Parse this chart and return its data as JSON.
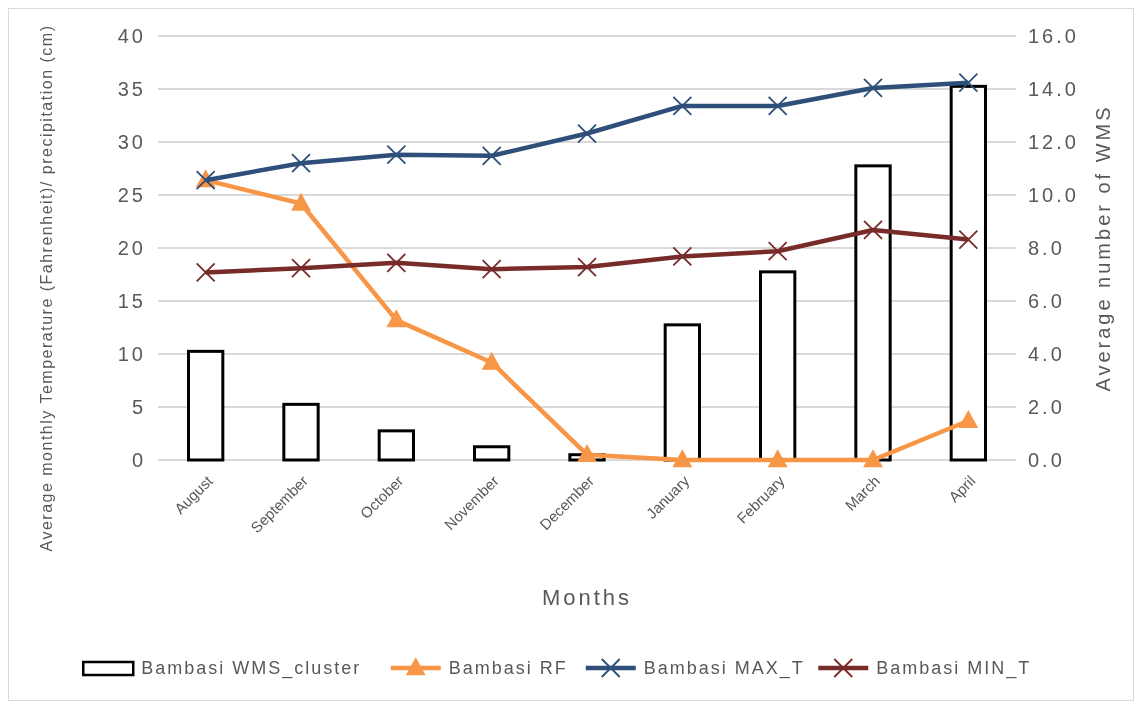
{
  "chart_data": {
    "type": "bar",
    "xlabel": "Months",
    "ylabel": "Average monthly Temperature (Fahrenheit)/ precipitation (cm)",
    "y2label": "Average number of WMS",
    "categories": [
      "August",
      "September",
      "October",
      "November",
      "December",
      "January",
      "February",
      "March",
      "April"
    ],
    "series": [
      {
        "name": "Bambasi WMS_cluster",
        "axis": "y2",
        "color": "#ffffff",
        "values": [
          4.1,
          2.1,
          1.1,
          0.5,
          0.2,
          5.1,
          7.1,
          11.1,
          14.1
        ]
      },
      {
        "name": "Bambasi RF",
        "type": "line",
        "marker": "triangle",
        "color": "#f79646",
        "values": [
          26.4,
          24.2,
          13.2,
          9.2,
          0.5,
          0,
          0,
          0,
          3.7
        ]
      },
      {
        "name": "Bambasi MAX_T",
        "type": "line",
        "marker": "cross",
        "color": "#2e4f7a",
        "values": [
          26.4,
          28.0,
          28.8,
          28.7,
          30.8,
          33.4,
          33.4,
          35.1,
          35.6
        ]
      },
      {
        "name": "Bambasi MIN_T",
        "type": "line",
        "marker": "cross",
        "color": "#772c2a",
        "values": [
          17.7,
          18.1,
          18.6,
          18.0,
          18.2,
          19.2,
          19.7,
          21.7,
          20.8
        ]
      }
    ],
    "ylim": [
      0,
      40
    ],
    "yticks": [
      0,
      5,
      10,
      15,
      20,
      25,
      30,
      35,
      40
    ],
    "y2lim": [
      0,
      16
    ],
    "y2ticks": [
      {
        "value": 0,
        "label": "0.0"
      },
      {
        "value": 2,
        "label": "2.0"
      },
      {
        "value": 4,
        "label": "4.0"
      },
      {
        "value": 6,
        "label": "6.0"
      },
      {
        "value": 8,
        "label": "8.0"
      },
      {
        "value": 10,
        "label": "10.0"
      },
      {
        "value": 12,
        "label": "12.0"
      },
      {
        "value": 14,
        "label": "14.0"
      },
      {
        "value": 16,
        "label": "16.0"
      }
    ],
    "grid": "y",
    "legend": "bottom"
  }
}
